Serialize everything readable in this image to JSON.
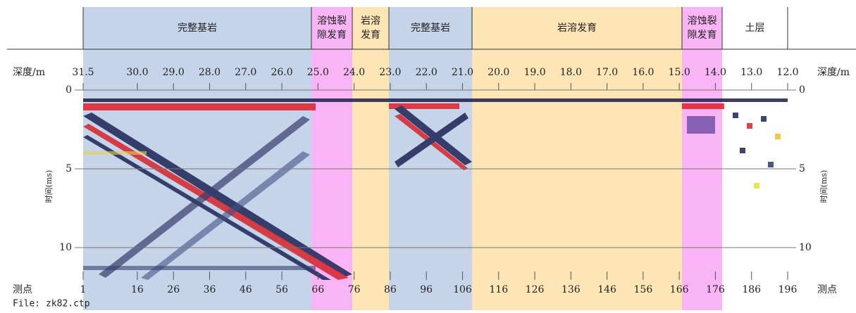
{
  "zones": [
    {
      "label": [
        "完整基岩"
      ],
      "color": "#c6d4ea"
    },
    {
      "label": [
        "溶蚀裂",
        "隙发育"
      ],
      "color": "#f8b4f4"
    },
    {
      "label": [
        "岩溶",
        "发育"
      ],
      "color": "#fde5b5"
    },
    {
      "label": [
        "完整基岩"
      ],
      "color": "#c6d4ea"
    },
    {
      "label": [
        "岩溶发育"
      ],
      "color": "#fde5b5"
    },
    {
      "label": [
        "溶蚀裂",
        "隙发育"
      ],
      "color": "#f8b4f4"
    },
    {
      "label": [
        "土层"
      ],
      "color": "#ffffff"
    }
  ],
  "depth_axis": {
    "label": "深度/m",
    "ticks": [
      31.5,
      {
        "value": 30,
        "label": "30.0"
      },
      {
        "value": 29,
        "label": "29.0"
      },
      {
        "value": 28,
        "label": "28.0"
      },
      {
        "value": 27,
        "label": "27.0"
      },
      {
        "value": 26,
        "label": "26.0"
      },
      {
        "value": 25,
        "label": "25.0"
      },
      {
        "value": 24,
        "label": "24.0"
      },
      {
        "value": 23,
        "label": "23.0"
      },
      {
        "value": 22,
        "label": "22.0"
      },
      {
        "value": 21,
        "label": "21.0"
      },
      {
        "value": 20,
        "label": "20.0"
      },
      {
        "value": 19,
        "label": "19.0"
      },
      {
        "value": 18,
        "label": "18.0"
      },
      {
        "value": 17,
        "label": "17.0"
      },
      {
        "value": 16,
        "label": "16.0"
      },
      {
        "value": 15,
        "label": "15.0"
      },
      {
        "value": 14,
        "label": "14.0"
      },
      {
        "value": 13,
        "label": "13.0"
      },
      {
        "value": 12,
        "label": "12.0"
      }
    ]
  },
  "time_axis": {
    "label": "时间(ms)",
    "ticks": [
      0,
      5,
      10
    ]
  },
  "point_axis": {
    "label": "测点",
    "ticks": [
      1,
      16,
      26,
      36,
      46,
      56,
      66,
      76,
      86,
      96,
      106,
      116,
      126,
      136,
      146,
      156,
      166,
      176,
      186,
      196
    ]
  },
  "file": "File: zk82.ctp"
}
